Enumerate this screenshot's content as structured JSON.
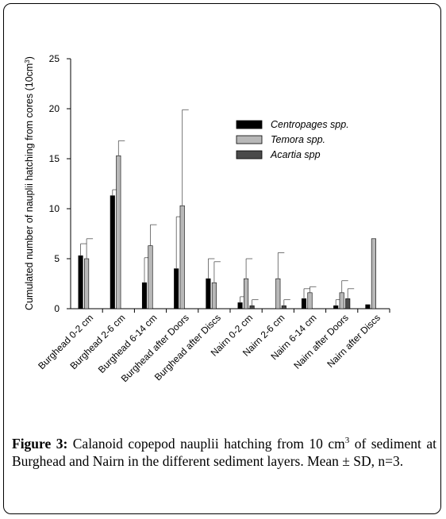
{
  "chart_data": {
    "type": "bar",
    "ylabel": "Cumulated number of nauplii hatching from cores (10cm",
    "ylabel_sup": "3",
    "ylabel_end": ")",
    "ylim": [
      0,
      25
    ],
    "yticks": [
      "0",
      "5",
      "10",
      "15",
      "20",
      "25"
    ],
    "categories": [
      "Burghead 0-2 cm",
      "Burghead 2-6 cm",
      "Burghead 6-14 cm",
      "Burghead after Doors",
      "Burghead after Discs",
      "Nairn 0-2 cm",
      "Nairn 2-6 cm",
      "Nairn 6-14 cm",
      "Nairn after Doors",
      "Nairn after Discs"
    ],
    "legend_position": "top-right",
    "series": [
      {
        "name": "Centropages spp.",
        "color": "#000000",
        "values": [
          5.3,
          11.3,
          2.6,
          4.0,
          3.0,
          0.6,
          0.0,
          1.0,
          0.3,
          0.4
        ],
        "errors": [
          1.2,
          0.6,
          2.5,
          5.2,
          2.0,
          0.6,
          0.0,
          1.0,
          0.6,
          0.0
        ]
      },
      {
        "name": "Temora spp.",
        "color": "#b8b8b8",
        "values": [
          5.0,
          15.3,
          6.3,
          10.3,
          2.6,
          3.0,
          3.0,
          1.6,
          1.6,
          7.0
        ],
        "errors": [
          2.0,
          1.5,
          2.1,
          9.6,
          2.1,
          2.0,
          2.6,
          0.6,
          1.2,
          0.0
        ]
      },
      {
        "name": "Acartia spp",
        "color": "#4a4a4a",
        "values": [
          0.0,
          0.0,
          0.0,
          0.0,
          0.0,
          0.3,
          0.3,
          0.0,
          1.0,
          0.0
        ],
        "errors": [
          0.0,
          0.0,
          0.0,
          0.0,
          0.0,
          0.6,
          0.6,
          0.0,
          1.0,
          0.0
        ]
      }
    ]
  },
  "caption": {
    "label": "Figure 3:",
    "text_before_sup": " Calanoid copepod nauplii hatching from 10 cm",
    "sup": "3",
    "text_after_sup": " of sediment at Burghead and Nairn in the different sediment layers. Mean ± SD, n=3."
  }
}
